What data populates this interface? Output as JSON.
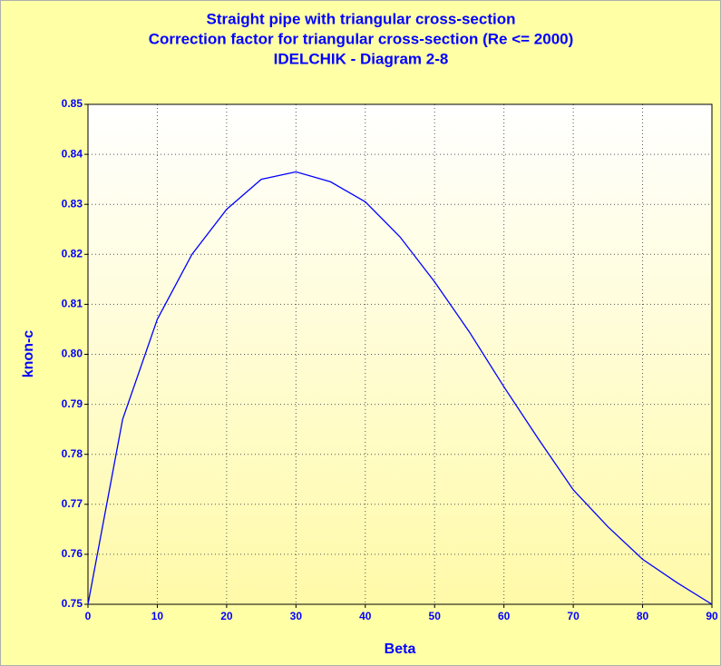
{
  "chart_data": {
    "type": "line",
    "title": [
      "Straight pipe with triangular cross-section",
      "Correction factor for triangular cross-section (Re <= 2000)",
      "IDELCHIK - Diagram 2-8"
    ],
    "xlabel": "Beta",
    "ylabel": "knon-c",
    "x": [
      0,
      5,
      10,
      15,
      20,
      25,
      30,
      35,
      40,
      45,
      50,
      55,
      60,
      65,
      70,
      75,
      80,
      85,
      90
    ],
    "series": [
      {
        "name": "knon-c",
        "color": "#0000ff",
        "values": [
          0.75,
          0.787,
          0.807,
          0.82,
          0.829,
          0.835,
          0.8365,
          0.8345,
          0.8305,
          0.8235,
          0.8145,
          0.8045,
          0.7935,
          0.783,
          0.7729,
          0.7655,
          0.759,
          0.7543,
          0.75
        ]
      }
    ],
    "xlim": [
      0,
      90
    ],
    "xticks": [
      0,
      10,
      20,
      30,
      40,
      50,
      60,
      70,
      80,
      90
    ],
    "ylim": [
      0.75,
      0.85
    ],
    "yticks": [
      0.75,
      0.76,
      0.77,
      0.78,
      0.79,
      {
        "value": 0.8,
        "label": "0.80"
      },
      0.81,
      0.82,
      0.83,
      0.84,
      0.85
    ],
    "grid": true
  }
}
